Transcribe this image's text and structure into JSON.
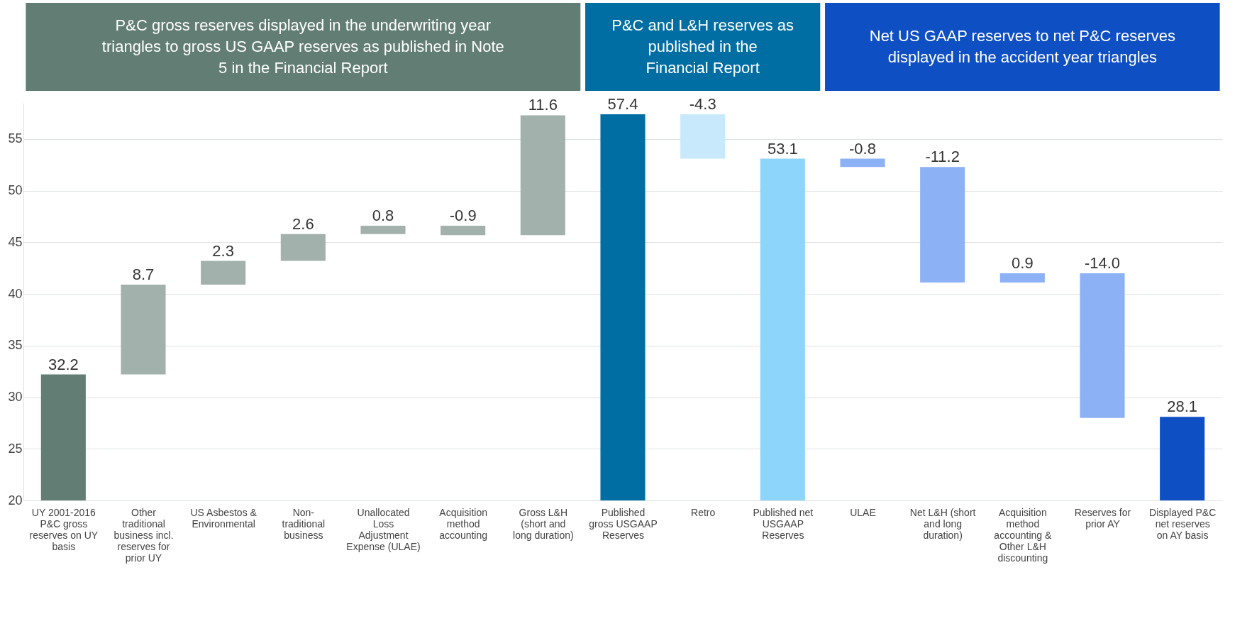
{
  "chart_data": {
    "type": "bar",
    "categories": [
      "UY 2001-2016 P&C gross reserves on UY basis",
      "Other traditional business incl. reserves for prior UY",
      "US Asbestos & Environmental",
      "Non-traditional business",
      "Unallocated Loss Adjustment Expense (ULAE)",
      "Acquisition method accounting",
      "Gross L&H (short and long duration)",
      "Published gross USGAAP Reserves",
      "Retro",
      "Published net USGAAP Reserves",
      "ULAE",
      "Net L&H (short and long duration)",
      "Acquisition method accounting & Other L&H discounting",
      "Reserves for prior AY",
      "Displayed P&C net reserves on AY basis"
    ],
    "values": [
      32.2,
      8.7,
      2.3,
      2.6,
      0.8,
      -0.9,
      11.6,
      57.4,
      -4.3,
      53.1,
      -0.8,
      -11.2,
      0.9,
      -14.0,
      28.1
    ],
    "base": [
      null,
      32.2,
      40.9,
      43.2,
      45.8,
      46.6,
      45.7,
      null,
      57.4,
      null,
      53.1,
      52.3,
      41.1,
      42.0,
      null
    ],
    "colors": [
      "#627d74",
      "#a2b1ac",
      "#a2b1ac",
      "#a2b1ac",
      "#a2b1ac",
      "#a2b1ac",
      "#a2b1ac",
      "#006ea3",
      "#c8e9fb",
      "#8dd5fa",
      "#8db1f5",
      "#8db1f5",
      "#8db1f5",
      "#8db1f5",
      "#0f4fc4"
    ],
    "value_labels": [
      "32.2",
      "8.7",
      "2.3",
      "2.6",
      "0.8",
      "-0.9",
      "11.6",
      "57.4",
      "-4.3",
      "53.1",
      "-0.8",
      "-11.2",
      "0.9",
      "-14.0",
      "28.1"
    ],
    "ylim": [
      20,
      58.5
    ],
    "yticks": [
      20,
      25,
      30,
      35,
      40,
      45,
      50,
      55
    ],
    "grid": "y",
    "annotations": [
      "P&C gross reserves displayed in the underwriting year triangles to gross US GAAP reserves as published in Note 5 in the Financial Report",
      "P&C and L&H reserves as published in the Financial Report",
      "Net US GAAP reserves to net P&C reserves displayed in the accident year triangles"
    ]
  }
}
